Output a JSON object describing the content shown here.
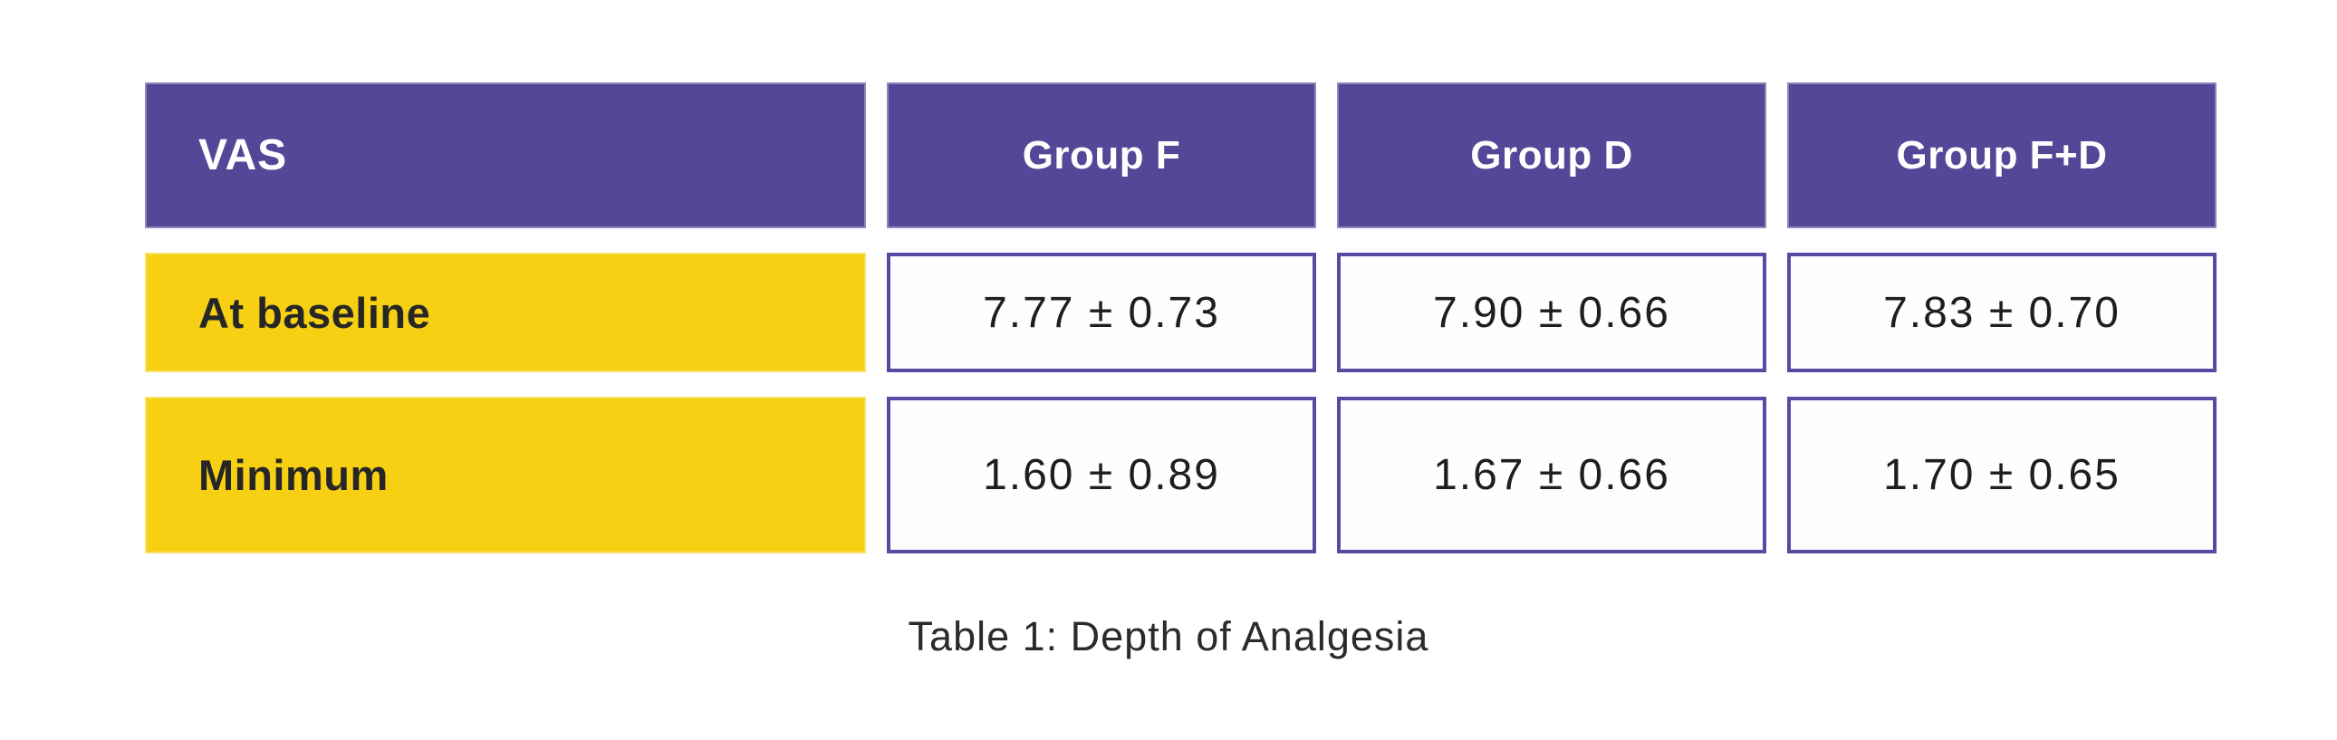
{
  "chart_data": {
    "type": "table",
    "title": "Table 1: Depth of Analgesia",
    "columns": [
      "VAS",
      "Group F",
      "Group D",
      "Group F+D"
    ],
    "rows": [
      {
        "label": "At baseline",
        "values": [
          "7.77 ± 0.73",
          "7.90 ± 0.66",
          "7.83 ± 0.70"
        ]
      },
      {
        "label": "Minimum",
        "values": [
          "1.60 ± 0.89",
          "1.67 ± 0.66",
          "1.70 ± 0.65"
        ]
      }
    ],
    "caption": "Table 1: Depth of Analgesia",
    "grid": false,
    "legend_position": "none"
  },
  "colors": {
    "header_fill": "#554697",
    "header_text": "#FFFFFF",
    "row_label_fill": "#F7D013",
    "row_label_text": "#262626",
    "value_cell_border": "#5A49A2",
    "value_cell_fill": "#FFFEFE",
    "value_text": "#1E1E1E",
    "caption_text": "#2B2B2B",
    "page_background": "#FFFFFF"
  }
}
